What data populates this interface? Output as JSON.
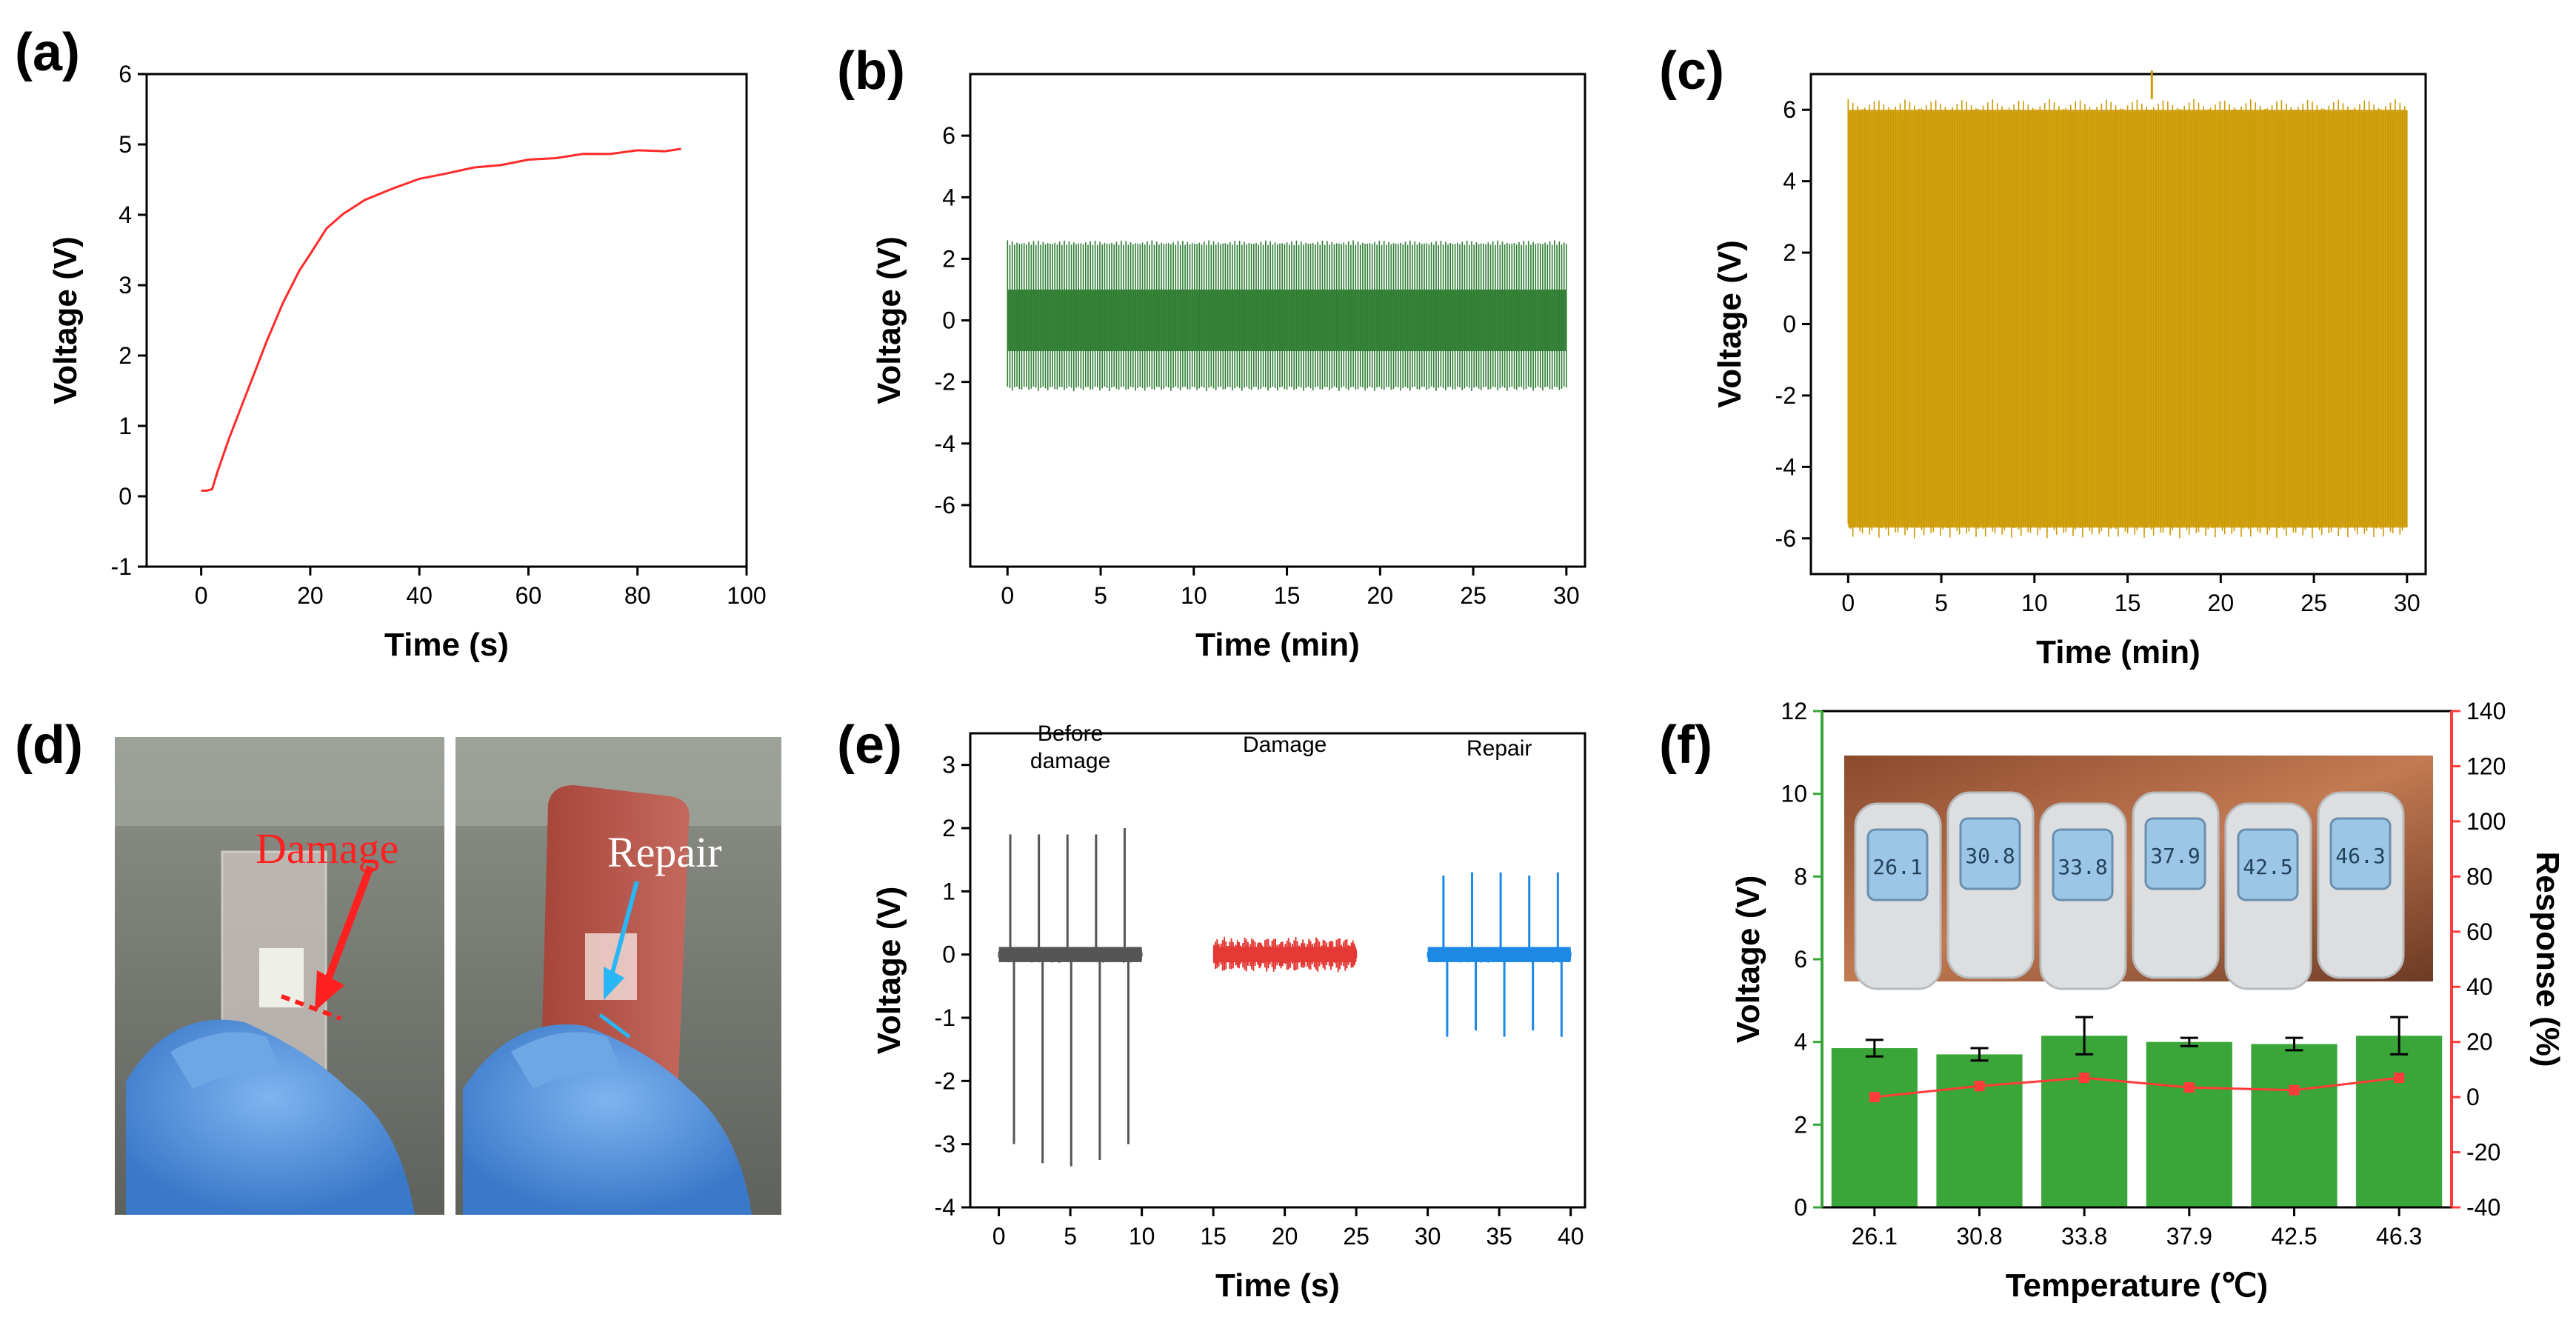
{
  "panel_labels": [
    "(a)",
    "(b)",
    "(c)",
    "(d)",
    "(e)",
    "(f)"
  ],
  "photo_d": {
    "damage_label": "Damage",
    "repair_label": "Repair"
  },
  "photo_f": {
    "thermometer_readings": [
      "26.1",
      "30.8",
      "33.8",
      "37.9",
      "42.5",
      "46.3"
    ]
  },
  "chart_data": [
    {
      "id": "a",
      "type": "line",
      "title": "",
      "xlabel": "Time (s)",
      "ylabel": "Voltage (V)",
      "xlim": [
        -10,
        100
      ],
      "ylim": [
        -1,
        6
      ],
      "xticks": [
        0,
        20,
        40,
        60,
        80,
        100
      ],
      "yticks": [
        -1,
        0,
        1,
        2,
        3,
        4,
        5,
        6
      ],
      "color": "#ff2a2a",
      "series": [
        {
          "name": "Voltage",
          "x": [
            0,
            1,
            2,
            3,
            5,
            8,
            10,
            12,
            15,
            18,
            20,
            23,
            26,
            30,
            35,
            40,
            45,
            50,
            55,
            60,
            65,
            70,
            75,
            80,
            85,
            88
          ],
          "y": [
            0.08,
            0.08,
            0.1,
            0.35,
            0.8,
            1.4,
            1.8,
            2.2,
            2.75,
            3.2,
            3.45,
            3.8,
            4.02,
            4.2,
            4.38,
            4.5,
            4.6,
            4.66,
            4.72,
            4.77,
            4.82,
            4.85,
            4.88,
            4.9,
            4.92,
            4.92
          ]
        }
      ]
    },
    {
      "id": "b",
      "type": "line",
      "xlabel": "Time (min)",
      "ylabel": "Voltage (V)",
      "xlim": [
        -2,
        31
      ],
      "ylim": [
        -8,
        8
      ],
      "xticks": [
        0,
        5,
        10,
        15,
        20,
        25,
        30
      ],
      "yticks": [
        -6,
        -4,
        -2,
        0,
        2,
        4,
        6
      ],
      "color": "#2e7d32",
      "series": [
        {
          "name": "Voltage",
          "x_range": [
            0,
            30
          ],
          "upper_peak": 2.6,
          "lower_peak": -2.3,
          "dense_band": [
            -1.0,
            1.0
          ]
        }
      ]
    },
    {
      "id": "c",
      "type": "line",
      "xlabel": "Time (min)",
      "ylabel": "Voltage (V)",
      "xlim": [
        -2,
        31
      ],
      "ylim": [
        -7,
        7
      ],
      "xticks": [
        0,
        5,
        10,
        15,
        20,
        25,
        30
      ],
      "yticks": [
        -6,
        -4,
        -2,
        0,
        2,
        4,
        6
      ],
      "color": "#cc9900",
      "series": [
        {
          "name": "Voltage",
          "x_range": [
            0,
            30
          ],
          "upper_peak": 6.3,
          "lower_peak": -6.0,
          "max_spike": 7.1,
          "max_spike_x": 16.3
        }
      ]
    },
    {
      "id": "e",
      "type": "line",
      "xlabel": "Time (s)",
      "ylabel": "Voltage (V)",
      "xlim": [
        -2,
        41
      ],
      "ylim": [
        -4,
        3.5
      ],
      "xticks": [
        0,
        5,
        10,
        15,
        20,
        25,
        30,
        35,
        40
      ],
      "yticks": [
        -4,
        -3,
        -2,
        -1,
        0,
        1,
        2,
        3
      ],
      "annotations": [
        "Before damage",
        "Damage",
        "Repair"
      ],
      "series": [
        {
          "name": "Before damage",
          "color": "#555555",
          "x_range": [
            0,
            10
          ],
          "peaks_x": [
            0.8,
            2.8,
            4.8,
            6.8,
            8.8
          ],
          "peaks_max": [
            1.9,
            1.9,
            1.9,
            1.9,
            2.0
          ],
          "peaks_min": [
            -3.0,
            -3.3,
            -3.35,
            -3.25,
            -3.0
          ]
        },
        {
          "name": "Damage",
          "color": "#e53935",
          "x_range": [
            15,
            25
          ],
          "noise": [
            -0.25,
            0.3
          ]
        },
        {
          "name": "Repair",
          "color": "#1e88e5",
          "x_range": [
            30,
            40
          ],
          "peaks_x": [
            31.1,
            33.1,
            35.1,
            37.1,
            39.1
          ],
          "peaks_max": [
            1.25,
            1.3,
            1.3,
            1.25,
            1.3
          ],
          "peaks_min": [
            -1.3,
            -1.2,
            -1.3,
            -1.2,
            -1.3
          ]
        }
      ]
    },
    {
      "id": "f",
      "type": "bar",
      "xlabel": "Temperature (℃)",
      "ylabel": "Voltage (V)",
      "y2label": "Response (%)",
      "categories": [
        "26.1",
        "30.8",
        "33.8",
        "37.9",
        "42.5",
        "46.3"
      ],
      "ylim": [
        0,
        12
      ],
      "yticks": [
        0,
        2,
        4,
        6,
        8,
        10,
        12
      ],
      "y2lim": [
        -40,
        140
      ],
      "y2ticks": [
        -40,
        -20,
        0,
        20,
        40,
        60,
        80,
        100,
        120,
        140
      ],
      "bar_color": "#3aa63a",
      "line_color": "#ff3b3b",
      "series": [
        {
          "name": "Voltage",
          "axis": "left",
          "values": [
            3.85,
            3.7,
            4.15,
            4.0,
            3.95,
            4.15
          ],
          "errors": [
            0.2,
            0.15,
            0.45,
            0.1,
            0.15,
            0.45
          ]
        },
        {
          "name": "Response",
          "axis": "right",
          "values": [
            0,
            4,
            7,
            3.5,
            2.5,
            7
          ]
        }
      ]
    }
  ]
}
